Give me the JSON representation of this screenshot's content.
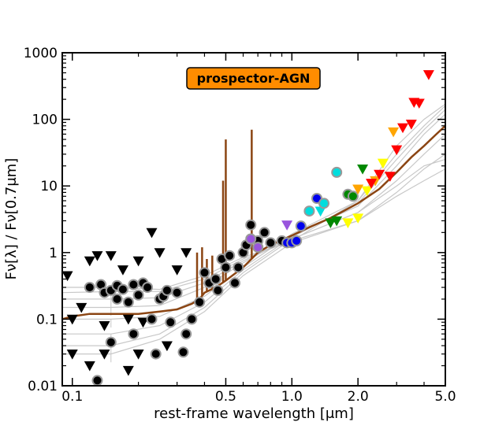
{
  "chart_data": {
    "type": "scatter",
    "legend_badge": {
      "text": "prospector-AGN",
      "background": "#ff8c00",
      "text_color": "#ffffff",
      "placement": "top-center"
    },
    "xlabel": "rest-frame wavelength [μm]",
    "ylabel": "Fν[λ] / Fν[0.7μm]",
    "x_scale": "log",
    "y_scale": "log",
    "xlim": [
      0.09,
      5.0
    ],
    "ylim": [
      0.01,
      1000
    ],
    "x_ticks": [
      {
        "value": 0.1,
        "label": "0.1"
      },
      {
        "value": 0.5,
        "label": "0.5"
      },
      {
        "value": 1.0,
        "label": "1.0"
      },
      {
        "value": 2.0,
        "label": "2.0"
      },
      {
        "value": 5.0,
        "label": "5.0"
      }
    ],
    "y_ticks": [
      {
        "value": 0.01,
        "label": "0.01"
      },
      {
        "value": 0.1,
        "label": "0.1"
      },
      {
        "value": 1,
        "label": "1"
      },
      {
        "value": 10,
        "label": "10"
      },
      {
        "value": 100,
        "label": "100"
      },
      {
        "value": 1000,
        "label": "1000"
      }
    ],
    "colors": {
      "model": "#8b4513",
      "templates": "#c8c8c8",
      "photometry_edge": "#999999",
      "black": "#000000",
      "purple": "#9955dd",
      "blue": "#0000ee",
      "cyan": "#00dddd",
      "green": "#008800",
      "yellow": "#ffff00",
      "orange": "#ffa500",
      "red": "#ff0000"
    },
    "model_sed": {
      "continuum": [
        [
          0.09,
          0.1
        ],
        [
          0.095,
          0.105
        ],
        [
          0.1,
          0.11
        ],
        [
          0.12,
          0.12
        ],
        [
          0.15,
          0.12
        ],
        [
          0.2,
          0.12
        ],
        [
          0.25,
          0.13
        ],
        [
          0.3,
          0.14
        ],
        [
          0.35,
          0.17
        ],
        [
          0.38,
          0.2
        ],
        [
          0.4,
          0.25
        ],
        [
          0.45,
          0.3
        ],
        [
          0.5,
          0.38
        ],
        [
          0.6,
          0.6
        ],
        [
          0.7,
          1.0
        ],
        [
          0.8,
          1.3
        ],
        [
          1.0,
          1.8
        ],
        [
          1.2,
          2.4
        ],
        [
          1.5,
          3.3
        ],
        [
          2.0,
          5.5
        ],
        [
          2.5,
          9.0
        ],
        [
          3.0,
          16
        ],
        [
          3.5,
          27
        ],
        [
          4.0,
          40
        ],
        [
          4.5,
          58
        ],
        [
          5.0,
          80
        ]
      ],
      "lines": [
        [
          0.37,
          1.0
        ],
        [
          0.39,
          1.2
        ],
        [
          0.41,
          0.8
        ],
        [
          0.434,
          0.9
        ],
        [
          0.486,
          12
        ],
        [
          0.5,
          50
        ],
        [
          0.6563,
          70
        ]
      ]
    },
    "template_curves": [
      [
        [
          0.09,
          0.25
        ],
        [
          0.15,
          0.26
        ],
        [
          0.25,
          0.26
        ],
        [
          0.4,
          0.4
        ],
        [
          0.6,
          0.8
        ],
        [
          1.0,
          1.5
        ],
        [
          2.0,
          3
        ],
        [
          3.0,
          8
        ],
        [
          4.0,
          18
        ],
        [
          5.0,
          30
        ]
      ],
      [
        [
          0.09,
          0.2
        ],
        [
          0.15,
          0.2
        ],
        [
          0.25,
          0.21
        ],
        [
          0.4,
          0.35
        ],
        [
          0.6,
          0.75
        ],
        [
          1.0,
          1.6
        ],
        [
          2.0,
          4
        ],
        [
          3.0,
          12
        ],
        [
          4.0,
          30
        ],
        [
          5.0,
          60
        ]
      ],
      [
        [
          0.09,
          0.15
        ],
        [
          0.15,
          0.15
        ],
        [
          0.25,
          0.16
        ],
        [
          0.4,
          0.3
        ],
        [
          0.6,
          0.7
        ],
        [
          1.0,
          1.8
        ],
        [
          2.0,
          5
        ],
        [
          3.0,
          20
        ],
        [
          4.0,
          60
        ],
        [
          5.0,
          120
        ]
      ],
      [
        [
          0.09,
          0.1
        ],
        [
          0.15,
          0.1
        ],
        [
          0.25,
          0.11
        ],
        [
          0.4,
          0.22
        ],
        [
          0.6,
          0.6
        ],
        [
          1.0,
          1.9
        ],
        [
          2.0,
          6
        ],
        [
          3.0,
          30
        ],
        [
          4.0,
          80
        ],
        [
          5.0,
          160
        ]
      ],
      [
        [
          0.09,
          0.06
        ],
        [
          0.15,
          0.06
        ],
        [
          0.25,
          0.08
        ],
        [
          0.4,
          0.18
        ],
        [
          0.6,
          0.55
        ],
        [
          1.0,
          1.7
        ],
        [
          2.0,
          5.5
        ],
        [
          3.0,
          25
        ],
        [
          4.0,
          70
        ],
        [
          5.0,
          140
        ]
      ],
      [
        [
          0.09,
          0.04
        ],
        [
          0.15,
          0.04
        ],
        [
          0.25,
          0.06
        ],
        [
          0.4,
          0.15
        ],
        [
          0.6,
          0.5
        ],
        [
          1.0,
          1.6
        ],
        [
          2.0,
          4
        ],
        [
          3.0,
          10
        ],
        [
          4.0,
          20
        ],
        [
          5.0,
          25
        ]
      ],
      [
        [
          0.09,
          0.03
        ],
        [
          0.15,
          0.03
        ],
        [
          0.25,
          0.05
        ],
        [
          0.4,
          0.13
        ],
        [
          0.6,
          0.45
        ],
        [
          1.0,
          1.4
        ],
        [
          2.0,
          3
        ],
        [
          3.0,
          7
        ],
        [
          4.0,
          12
        ],
        [
          5.0,
          18
        ]
      ],
      [
        [
          0.09,
          0.3
        ],
        [
          0.15,
          0.3
        ],
        [
          0.25,
          0.28
        ],
        [
          0.4,
          0.45
        ],
        [
          0.6,
          0.85
        ],
        [
          1.0,
          1.5
        ],
        [
          2.0,
          6
        ],
        [
          3.0,
          40
        ],
        [
          4.0,
          100
        ],
        [
          5.0,
          170
        ]
      ]
    ],
    "circles_black": [
      [
        0.12,
        0.3
      ],
      [
        0.13,
        0.012
      ],
      [
        0.135,
        0.33
      ],
      [
        0.14,
        0.25
      ],
      [
        0.15,
        0.27
      ],
      [
        0.15,
        0.045
      ],
      [
        0.16,
        0.32
      ],
      [
        0.16,
        0.2
      ],
      [
        0.17,
        0.28
      ],
      [
        0.18,
        0.18
      ],
      [
        0.19,
        0.33
      ],
      [
        0.19,
        0.06
      ],
      [
        0.2,
        0.23
      ],
      [
        0.21,
        0.35
      ],
      [
        0.22,
        0.3
      ],
      [
        0.23,
        0.1
      ],
      [
        0.24,
        0.03
      ],
      [
        0.25,
        0.2
      ],
      [
        0.26,
        0.22
      ],
      [
        0.27,
        0.27
      ],
      [
        0.28,
        0.09
      ],
      [
        0.3,
        0.25
      ],
      [
        0.32,
        0.032
      ],
      [
        0.33,
        0.06
      ],
      [
        0.35,
        0.1
      ],
      [
        0.38,
        0.18
      ],
      [
        0.4,
        0.5
      ],
      [
        0.42,
        0.35
      ],
      [
        0.45,
        0.4
      ],
      [
        0.46,
        0.27
      ],
      [
        0.48,
        0.8
      ],
      [
        0.5,
        0.6
      ],
      [
        0.52,
        0.9
      ],
      [
        0.55,
        0.35
      ],
      [
        0.57,
        0.6
      ],
      [
        0.6,
        1.0
      ],
      [
        0.62,
        1.3
      ],
      [
        0.65,
        2.6
      ],
      [
        0.7,
        1.5
      ],
      [
        0.75,
        2.0
      ],
      [
        0.8,
        1.4
      ],
      [
        0.9,
        1.5
      ]
    ],
    "circles_purple": [
      [
        0.65,
        1.6
      ],
      [
        0.7,
        1.2
      ]
    ],
    "circles_blue": [
      [
        0.95,
        1.4
      ],
      [
        1.0,
        1.4
      ],
      [
        1.05,
        1.5
      ],
      [
        1.1,
        2.5
      ],
      [
        1.3,
        6.5
      ]
    ],
    "circles_cyan": [
      [
        1.2,
        4.2
      ],
      [
        1.4,
        5.5
      ],
      [
        1.6,
        16
      ]
    ],
    "circles_green": [
      [
        1.8,
        7.5
      ],
      [
        1.9,
        7.0
      ]
    ],
    "tri_black": [
      [
        0.095,
        0.45
      ],
      [
        0.1,
        0.1
      ],
      [
        0.11,
        0.15
      ],
      [
        0.12,
        0.75
      ],
      [
        0.13,
        0.9
      ],
      [
        0.14,
        0.08
      ],
      [
        0.15,
        0.9
      ],
      [
        0.17,
        0.55
      ],
      [
        0.18,
        0.1
      ],
      [
        0.2,
        0.75
      ],
      [
        0.21,
        0.09
      ],
      [
        0.23,
        2.0
      ],
      [
        0.25,
        1.0
      ],
      [
        0.27,
        0.04
      ],
      [
        0.3,
        0.55
      ],
      [
        0.33,
        1.0
      ],
      [
        0.1,
        0.03
      ],
      [
        0.12,
        0.02
      ],
      [
        0.14,
        0.03
      ],
      [
        0.18,
        0.017
      ],
      [
        0.2,
        0.03
      ]
    ],
    "tri_purple": [
      [
        0.95,
        2.6
      ]
    ],
    "tri_cyan": [
      [
        1.35,
        4.2
      ]
    ],
    "tri_green": [
      [
        1.5,
        2.8
      ],
      [
        1.6,
        3.0
      ],
      [
        2.1,
        18
      ]
    ],
    "tri_yellow": [
      [
        1.8,
        2.8
      ],
      [
        2.0,
        3.3
      ],
      [
        2.2,
        8.5
      ],
      [
        2.6,
        22
      ]
    ],
    "tri_orange": [
      [
        2.0,
        9
      ],
      [
        2.4,
        12
      ],
      [
        2.9,
        65
      ]
    ],
    "tri_red": [
      [
        2.3,
        11
      ],
      [
        2.5,
        15
      ],
      [
        2.8,
        14
      ],
      [
        3.0,
        35
      ],
      [
        3.2,
        75
      ],
      [
        3.5,
        85
      ],
      [
        3.6,
        180
      ],
      [
        3.8,
        175
      ],
      [
        4.2,
        470
      ]
    ]
  }
}
